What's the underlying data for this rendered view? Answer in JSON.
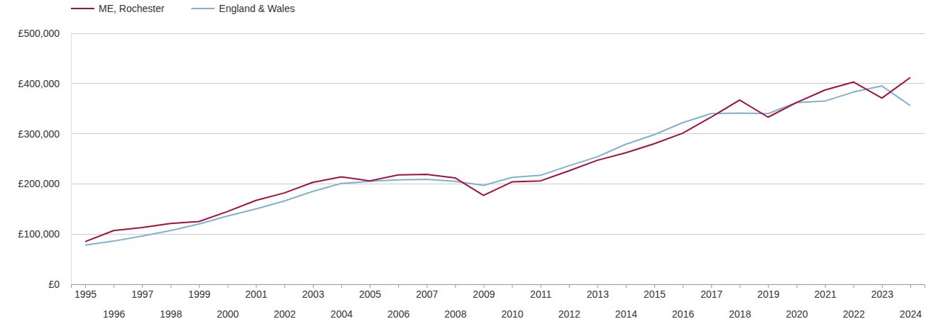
{
  "chart_data": {
    "type": "line",
    "categories": [
      "1995",
      "1996",
      "1997",
      "1998",
      "1999",
      "2000",
      "2001",
      "2002",
      "2003",
      "2004",
      "2005",
      "2006",
      "2007",
      "2008",
      "2009",
      "2010",
      "2011",
      "2012",
      "2013",
      "2014",
      "2015",
      "2016",
      "2017",
      "2018",
      "2019",
      "2020",
      "2021",
      "2022",
      "2023",
      "2024"
    ],
    "series": [
      {
        "name": "ME, Rochester",
        "color": "#a50f3c",
        "values": [
          85000,
          107000,
          113000,
          121000,
          125000,
          145000,
          167000,
          182000,
          203000,
          214000,
          206000,
          218000,
          219000,
          212000,
          177000,
          204000,
          206000,
          226000,
          247000,
          262000,
          280000,
          301000,
          333000,
          367000,
          333000,
          362000,
          387000,
          403000,
          371000,
          412000
        ]
      },
      {
        "name": "England & Wales",
        "color": "#7fb2d1",
        "values": [
          78000,
          86000,
          96000,
          107000,
          120000,
          136000,
          150000,
          166000,
          185000,
          201000,
          205000,
          208000,
          209000,
          205000,
          197000,
          213000,
          217000,
          236000,
          254000,
          279000,
          298000,
          322000,
          340000,
          341000,
          340000,
          362000,
          365000,
          383000,
          395000,
          356000
        ]
      }
    ],
    "ylim": [
      0,
      500000
    ],
    "yticks": [
      {
        "value": 0,
        "label": "£0"
      },
      {
        "value": 100000,
        "label": "£100,000"
      },
      {
        "value": 200000,
        "label": "£200,000"
      },
      {
        "value": 300000,
        "label": "£300,000"
      },
      {
        "value": 400000,
        "label": "£400,000"
      },
      {
        "value": 500000,
        "label": "£500,000"
      }
    ],
    "grid": true,
    "legend": "top-left"
  }
}
